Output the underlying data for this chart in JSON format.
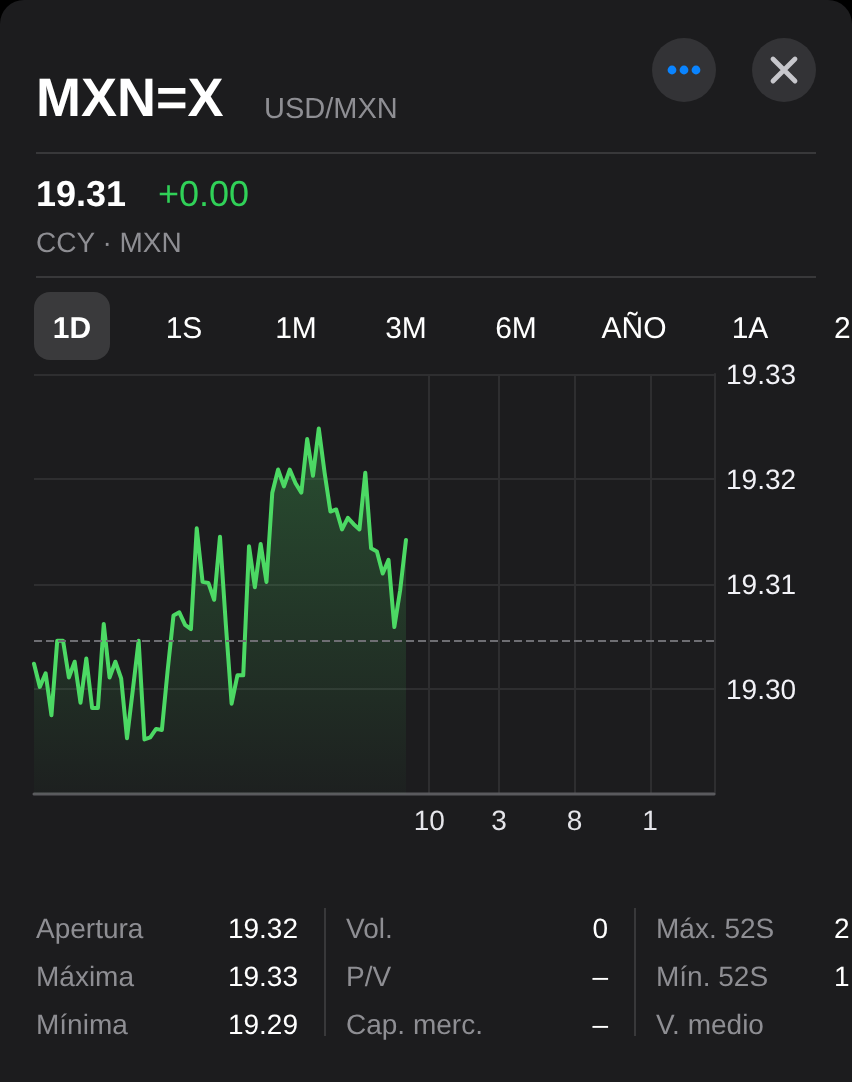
{
  "chart_data": {
    "type": "area",
    "title": "MXN=X",
    "subtitle": "USD/MXN",
    "annotations": [
      "19.31",
      "+0.00",
      "CCY · MXN",
      "1D",
      "1S",
      "1M",
      "3M",
      "6M",
      "AÑO",
      "1A",
      "2",
      "Apertura",
      "19.32",
      "Vol.",
      "0",
      "Máx. 52S",
      "2",
      "Máxima",
      "19.33",
      "P/V",
      "–",
      "Mín. 52S",
      "1",
      "Mínima",
      "19.29",
      "Cap. merc.",
      "–",
      "V. medio"
    ],
    "categories": [
      null,
      null,
      null,
      null,
      null,
      null,
      null,
      null,
      null,
      null,
      null,
      null,
      null,
      null,
      null,
      null,
      null,
      null,
      null,
      null,
      null,
      null,
      null,
      null,
      null,
      null,
      null,
      null,
      null,
      null,
      null,
      null,
      null,
      null,
      null,
      null,
      null,
      null,
      null,
      null,
      null,
      null,
      null,
      null,
      null,
      null,
      null,
      null,
      null,
      null,
      null,
      null,
      null,
      null,
      null,
      null,
      null,
      null,
      null,
      null,
      null,
      null,
      null,
      null,
      null,
      null,
      null,
      null,
      "10",
      null,
      null,
      null,
      null,
      null,
      null,
      null,
      null,
      null,
      null,
      null,
      "3",
      null,
      null,
      null,
      null,
      null,
      null,
      null,
      null,
      null,
      null,
      null,
      null,
      "8",
      null,
      null,
      null,
      null,
      null,
      null,
      null,
      null,
      null,
      null,
      null,
      null,
      "1",
      null,
      null,
      null,
      null,
      null,
      null,
      null,
      null,
      null,
      null,
      null
    ],
    "values": [
      19.3024,
      19.3002,
      19.3015,
      19.2975,
      19.3046,
      19.3046,
      19.3011,
      19.3026,
      19.2987,
      19.3029,
      19.2982,
      19.2982,
      19.3062,
      19.3011,
      19.3026,
      19.301,
      19.2953,
      19.2999,
      19.3046,
      19.2952,
      19.2954,
      19.2962,
      19.2961,
      19.3018,
      19.307,
      19.3073,
      19.3061,
      19.3057,
      19.3153,
      19.3102,
      19.3101,
      19.3085,
      19.3145,
      19.3062,
      19.2986,
      19.3013,
      19.3013,
      19.3136,
      19.3097,
      19.3138,
      19.3102,
      19.3187,
      19.3209,
      19.3193,
      19.3209,
      19.3196,
      19.3187,
      19.3238,
      19.3203,
      19.3248,
      19.3206,
      19.3169,
      19.3171,
      19.3152,
      19.3163,
      19.3157,
      19.3152,
      19.3206,
      19.3134,
      19.3131,
      19.311,
      19.3123,
      19.3059,
      19.3094,
      19.3142,
      null,
      null,
      null,
      null,
      null,
      null,
      null,
      null,
      null,
      null,
      null,
      null,
      null,
      null,
      null,
      null,
      null,
      null,
      null,
      null,
      null,
      null,
      null,
      null,
      null,
      null,
      null,
      null,
      null,
      null,
      null,
      null,
      null,
      null,
      null,
      null,
      null,
      null,
      null,
      null,
      null,
      null,
      null,
      null,
      null,
      null,
      null,
      null,
      null,
      null,
      null,
      null,
      null
    ],
    "color": "#4cd964",
    "ylim": [
      19.29,
      19.33
    ],
    "yticks": [
      {
        "value": 19.3,
        "label": "19.30"
      },
      19.31,
      19.32,
      19.33
    ],
    "grid": true,
    "marker": "none",
    "ref_lines": [
      {
        "axis": "y",
        "value": 19.3046,
        "color": "#6e6e73",
        "line_style": "dashed"
      }
    ]
  }
}
